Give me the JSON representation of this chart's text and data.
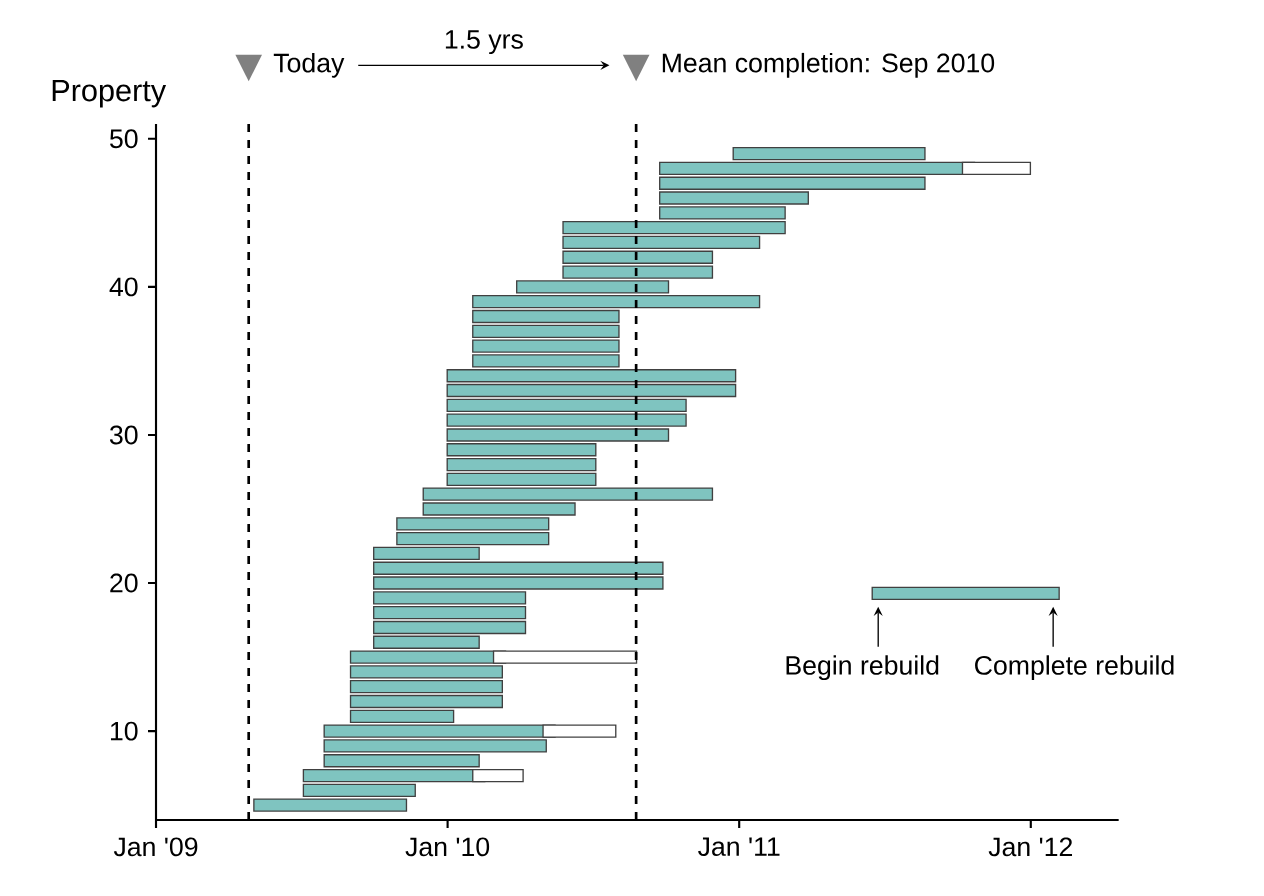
{
  "chart_data": {
    "type": "line",
    "ylabel": "Property",
    "series": [
      {
        "color": "#7fc4c0",
        "x": [
          "2009-05-11",
          "2009-11-03"
        ],
        "values": [
          5,
          5
        ]
      },
      {
        "color": "#7fc4c0",
        "x": [
          "2009-07-12",
          "2009-11-14"
        ],
        "values": [
          6,
          6
        ]
      },
      {
        "color": "#7fc4c0",
        "x": [
          "2009-07-12",
          "2010-02-09"
        ],
        "values": [
          7,
          7
        ]
      },
      {
        "color": "#ffffff",
        "x": [
          "2010-02-09",
          "2010-03-29"
        ],
        "values": [
          7,
          7
        ]
      },
      {
        "color": "#7fc4c0",
        "x": [
          "2009-08-07",
          "2010-02-02"
        ],
        "values": [
          8,
          8
        ]
      },
      {
        "color": "#7fc4c0",
        "x": [
          "2009-08-07",
          "2010-04-27"
        ],
        "values": [
          9,
          9
        ]
      },
      {
        "color": "#7fc4c0",
        "x": [
          "2009-08-07",
          "2010-05-08"
        ],
        "values": [
          10,
          10
        ]
      },
      {
        "color": "#ffffff",
        "x": [
          "2010-05-08",
          "2010-07-23"
        ],
        "values": [
          10,
          10
        ]
      },
      {
        "color": "#7fc4c0",
        "x": [
          "2009-09-09",
          "2010-01-01"
        ],
        "values": [
          11,
          11
        ]
      },
      {
        "color": "#7fc4c0",
        "x": [
          "2009-09-09",
          "2010-03-03"
        ],
        "values": [
          12,
          12
        ]
      },
      {
        "color": "#7fc4c0",
        "x": [
          "2009-09-09",
          "2010-03-03"
        ],
        "values": [
          13,
          13
        ]
      },
      {
        "color": "#7fc4c0",
        "x": [
          "2009-09-09",
          "2010-03-03"
        ],
        "values": [
          14,
          14
        ]
      },
      {
        "color": "#7fc4c0",
        "x": [
          "2009-09-09",
          "2010-03-07"
        ],
        "values": [
          15,
          15
        ]
      },
      {
        "color": "#ffffff",
        "x": [
          "2010-03-07",
          "2010-08-18"
        ],
        "values": [
          15,
          15
        ]
      },
      {
        "color": "#7fc4c0",
        "x": [
          "2009-10-08",
          "2010-02-02"
        ],
        "values": [
          16,
          16
        ]
      },
      {
        "color": "#7fc4c0",
        "x": [
          "2009-10-08",
          "2010-04-01"
        ],
        "values": [
          17,
          17
        ]
      },
      {
        "color": "#7fc4c0",
        "x": [
          "2009-10-08",
          "2010-04-01"
        ],
        "values": [
          18,
          18
        ]
      },
      {
        "color": "#7fc4c0",
        "x": [
          "2009-10-08",
          "2010-04-01"
        ],
        "values": [
          19,
          19
        ]
      },
      {
        "color": "#7fc4c0",
        "x": [
          "2009-10-08",
          "2010-09-20"
        ],
        "values": [
          20,
          20
        ]
      },
      {
        "color": "#7fc4c0",
        "x": [
          "2009-10-08",
          "2010-09-20"
        ],
        "values": [
          21,
          21
        ]
      },
      {
        "color": "#7fc4c0",
        "x": [
          "2009-10-08",
          "2010-02-02"
        ],
        "values": [
          22,
          22
        ]
      },
      {
        "color": "#7fc4c0",
        "x": [
          "2009-11-06",
          "2010-04-30"
        ],
        "values": [
          23,
          23
        ]
      },
      {
        "color": "#7fc4c0",
        "x": [
          "2009-11-06",
          "2010-04-30"
        ],
        "values": [
          24,
          24
        ]
      },
      {
        "color": "#7fc4c0",
        "x": [
          "2009-12-09",
          "2010-06-02"
        ],
        "values": [
          25,
          25
        ]
      },
      {
        "color": "#7fc4c0",
        "x": [
          "2009-12-09",
          "2010-11-21"
        ],
        "values": [
          26,
          26
        ]
      },
      {
        "color": "#7fc4c0",
        "x": [
          "2010-01-08",
          "2010-06-28"
        ],
        "values": [
          27,
          27
        ]
      },
      {
        "color": "#7fc4c0",
        "x": [
          "2010-01-08",
          "2010-06-28"
        ],
        "values": [
          28,
          28
        ]
      },
      {
        "color": "#7fc4c0",
        "x": [
          "2010-01-08",
          "2010-06-28"
        ],
        "values": [
          29,
          29
        ]
      },
      {
        "color": "#7fc4c0",
        "x": [
          "2010-01-08",
          "2010-09-27"
        ],
        "values": [
          30,
          30
        ]
      },
      {
        "color": "#7fc4c0",
        "x": [
          "2010-01-08",
          "2010-10-19"
        ],
        "values": [
          31,
          31
        ]
      },
      {
        "color": "#7fc4c0",
        "x": [
          "2010-01-08",
          "2010-10-19"
        ],
        "values": [
          32,
          32
        ]
      },
      {
        "color": "#7fc4c0",
        "x": [
          "2010-01-08",
          "2010-12-20"
        ],
        "values": [
          33,
          33
        ]
      },
      {
        "color": "#7fc4c0",
        "x": [
          "2010-01-08",
          "2010-12-20"
        ],
        "values": [
          34,
          34
        ]
      },
      {
        "color": "#7fc4c0",
        "x": [
          "2010-02-09",
          "2010-07-27"
        ],
        "values": [
          35,
          35
        ]
      },
      {
        "color": "#7fc4c0",
        "x": [
          "2010-02-09",
          "2010-07-27"
        ],
        "values": [
          36,
          36
        ]
      },
      {
        "color": "#7fc4c0",
        "x": [
          "2010-02-09",
          "2010-07-27"
        ],
        "values": [
          37,
          37
        ]
      },
      {
        "color": "#7fc4c0",
        "x": [
          "2010-02-09",
          "2010-07-27"
        ],
        "values": [
          38,
          38
        ]
      },
      {
        "color": "#7fc4c0",
        "x": [
          "2010-02-09",
          "2011-01-19"
        ],
        "values": [
          39,
          39
        ]
      },
      {
        "color": "#7fc4c0",
        "x": [
          "2010-04-05",
          "2010-09-27"
        ],
        "values": [
          40,
          40
        ]
      },
      {
        "color": "#7fc4c0",
        "x": [
          "2010-06-02",
          "2010-11-21"
        ],
        "values": [
          41,
          41
        ]
      },
      {
        "color": "#7fc4c0",
        "x": [
          "2010-06-02",
          "2010-11-21"
        ],
        "values": [
          42,
          42
        ]
      },
      {
        "color": "#7fc4c0",
        "x": [
          "2010-06-02",
          "2011-01-19"
        ],
        "values": [
          43,
          43
        ]
      },
      {
        "color": "#7fc4c0",
        "x": [
          "2010-06-02",
          "2011-02-20"
        ],
        "values": [
          44,
          44
        ]
      },
      {
        "color": "#7fc4c0",
        "x": [
          "2010-10-01",
          "2011-02-20"
        ],
        "values": [
          45,
          45
        ]
      },
      {
        "color": "#7fc4c0",
        "x": [
          "2010-10-01",
          "2011-03-21"
        ],
        "values": [
          46,
          46
        ]
      },
      {
        "color": "#7fc4c0",
        "x": [
          "2010-10-01",
          "2011-08-14"
        ],
        "values": [
          47,
          47
        ]
      },
      {
        "color": "#7fc4c0",
        "x": [
          "2010-10-01",
          "2011-10-15"
        ],
        "values": [
          48,
          48
        ]
      },
      {
        "color": "#ffffff",
        "x": [
          "2011-10-15",
          "2011-12-24"
        ],
        "values": [
          48,
          48
        ]
      },
      {
        "color": "#7fc4c0",
        "x": [
          "2011-01-01",
          "2011-08-14"
        ],
        "values": [
          49,
          49
        ]
      },
      {
        "color": "#7fc4c0",
        "x": [
          "2011-06-24",
          "2012-01-29"
        ],
        "values": [
          19.3,
          19.3
        ]
      }
    ],
    "xlim": [
      "2009-01-01",
      "2012-04-20"
    ],
    "xticks": [
      {
        "value": "2009-01-01",
        "label": "Jan '09"
      },
      {
        "value": "2010-01-01",
        "label": "Jan '10"
      },
      {
        "value": "2011-01-01",
        "label": "Jan '11"
      },
      {
        "value": "2012-01-01",
        "label": "Jan '12"
      }
    ],
    "ylim": [
      4,
      51
    ],
    "yticks": [
      10,
      20,
      30,
      40,
      50
    ],
    "ref_lines": [
      {
        "axis": "x",
        "value": "2009-04-27",
        "label": "Today",
        "color": "#000000",
        "line_style": "dashed"
      },
      {
        "axis": "x",
        "value": "2010-08-25",
        "label": "Mean completion: Sep 2010",
        "color": "#000000",
        "line_style": "dashed"
      }
    ],
    "annotations": [
      "1.5 yrs",
      "Begin rebuild",
      "Complete rebuild"
    ]
  }
}
